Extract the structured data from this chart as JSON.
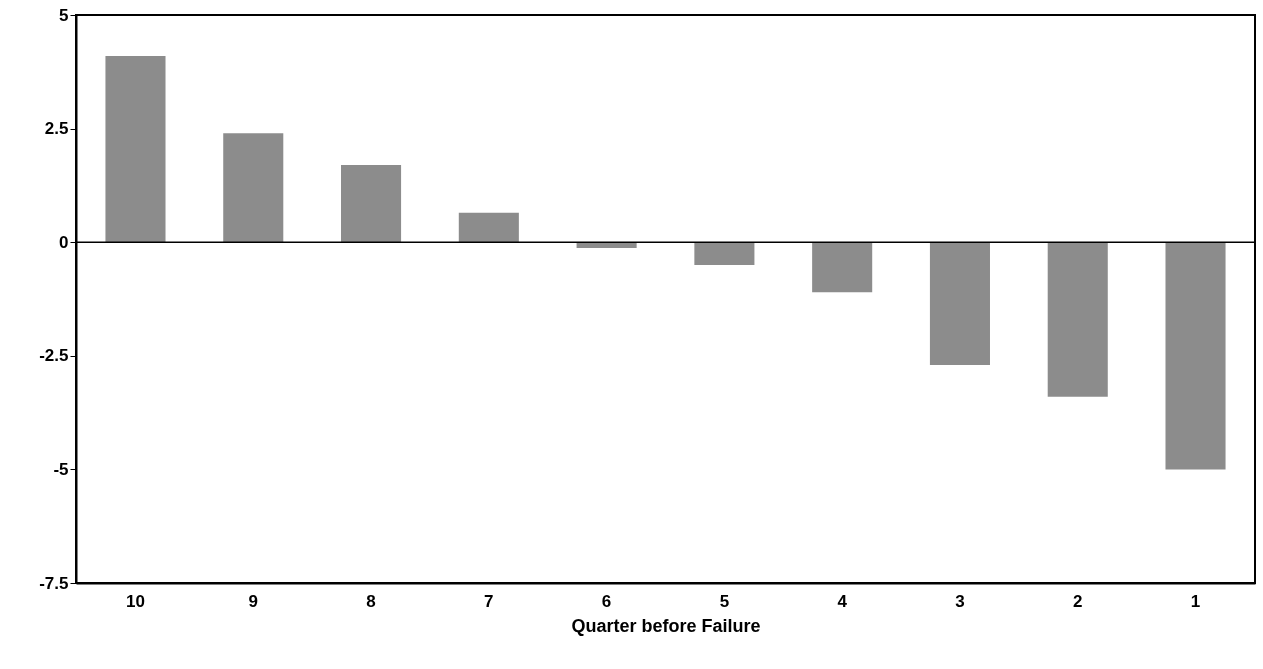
{
  "chart_data": {
    "type": "bar",
    "xlabel": "Quarter before Failure",
    "categories": [
      "10",
      "9",
      "8",
      "7",
      "6",
      "5",
      "4",
      "3",
      "2",
      "1"
    ],
    "values": [
      4.1,
      2.4,
      1.7,
      0.65,
      -0.13,
      -0.5,
      -1.1,
      -2.7,
      -3.4,
      -5.0
    ],
    "color": "#8c8c8c",
    "ylim": [
      -7.5,
      5
    ],
    "yticks": [
      {
        "value": -7.5,
        "label": "-7.5"
      },
      -5,
      {
        "value": -2.5,
        "label": "-2.5"
      },
      0,
      {
        "value": 2.5,
        "label": "2.5"
      },
      5
    ],
    "grid": false,
    "ref_lines": [
      {
        "axis": "y",
        "value": 0,
        "color": "#000000"
      }
    ]
  }
}
